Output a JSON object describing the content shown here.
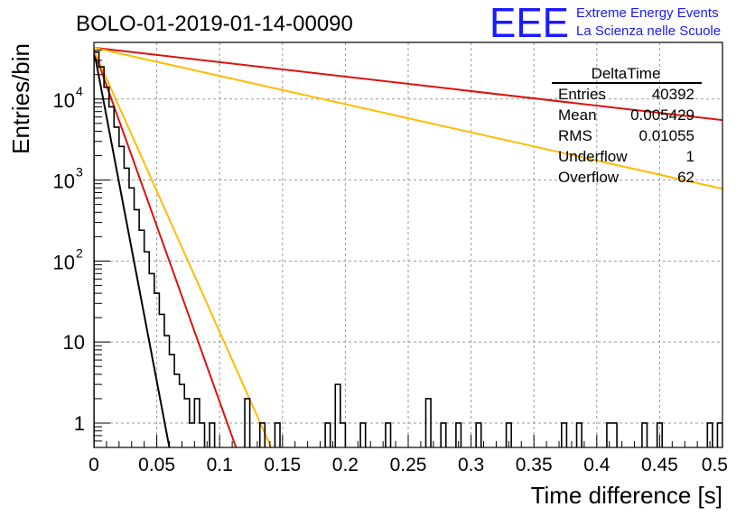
{
  "title": "BOLO-01-2019-01-14-00090",
  "logo": {
    "mark": "EEE",
    "line1": "Extreme Energy Events",
    "line2": "La Scienza nelle Scuole",
    "color": "#1a1aff"
  },
  "stats_box": {
    "title": "DeltaTime",
    "rows": [
      {
        "label": "Entries",
        "value": "40392"
      },
      {
        "label": "Mean",
        "value": "0.005429"
      },
      {
        "label": "RMS",
        "value": "0.01055"
      },
      {
        "label": "Underflow",
        "value": "1"
      },
      {
        "label": "Overflow",
        "value": "62"
      }
    ]
  },
  "chart_data": {
    "type": "line",
    "xlabel": "Time difference [s]",
    "ylabel": "Entries/bin",
    "xlim": [
      0,
      0.5
    ],
    "ylim": [
      0.5,
      50000
    ],
    "yscale": "log",
    "grid": true,
    "x_ticks": [
      "0",
      "0.05",
      "0.1",
      "0.15",
      "0.2",
      "0.25",
      "0.3",
      "0.35",
      "0.4",
      "0.45",
      "0.5"
    ],
    "y_ticks": [
      {
        "value": 1,
        "label": "1"
      },
      {
        "value": 10,
        "label": "10"
      },
      {
        "value": 100,
        "label": "10",
        "exp": "2"
      },
      {
        "value": 1000,
        "label": "10",
        "exp": "3"
      },
      {
        "value": 10000,
        "label": "10",
        "exp": "4"
      }
    ],
    "histogram": {
      "color": "#000000",
      "bin_width": 0.004,
      "counts": [
        38000,
        25000,
        14000,
        8000,
        4500,
        2600,
        1400,
        800,
        430,
        240,
        130,
        70,
        40,
        22,
        12,
        7,
        4,
        3,
        2,
        1,
        2,
        1,
        0,
        1,
        0,
        0,
        0,
        0,
        0,
        0,
        2,
        0,
        0,
        1,
        0,
        0,
        1,
        0,
        0,
        0,
        0,
        0,
        0,
        0,
        0,
        0,
        1,
        0,
        3,
        1,
        0,
        0,
        0,
        1,
        0,
        0,
        0,
        0,
        1,
        0,
        0,
        0,
        0,
        0,
        0,
        0,
        2,
        0,
        0,
        1,
        0,
        0,
        1,
        0,
        0,
        0,
        1,
        0,
        0,
        0,
        0,
        0,
        1,
        0,
        0,
        0,
        0,
        0,
        0,
        0,
        0,
        0,
        0,
        1,
        0,
        0,
        1,
        0,
        0,
        0,
        0,
        0,
        1,
        1,
        0,
        0,
        0,
        0,
        0,
        1,
        0,
        0,
        1,
        0,
        0,
        0,
        0,
        0,
        0,
        0,
        0,
        0,
        1,
        0,
        1
      ]
    },
    "series": [
      {
        "color": "#000000",
        "x": [
          0,
          0.06
        ],
        "y": [
          40000,
          0.5
        ]
      },
      {
        "color": "#dd1111",
        "x": [
          0,
          0.113
        ],
        "y": [
          40000,
          0.5
        ]
      },
      {
        "color": "#ffbb00",
        "x": [
          0,
          0.141
        ],
        "y": [
          40000,
          0.5
        ]
      },
      {
        "color": "#dd1111",
        "x": [
          0,
          0.5
        ],
        "y": [
          43000,
          5500
        ]
      },
      {
        "color": "#ffbb00",
        "x": [
          0,
          0.5
        ],
        "y": [
          43000,
          780
        ]
      }
    ]
  }
}
